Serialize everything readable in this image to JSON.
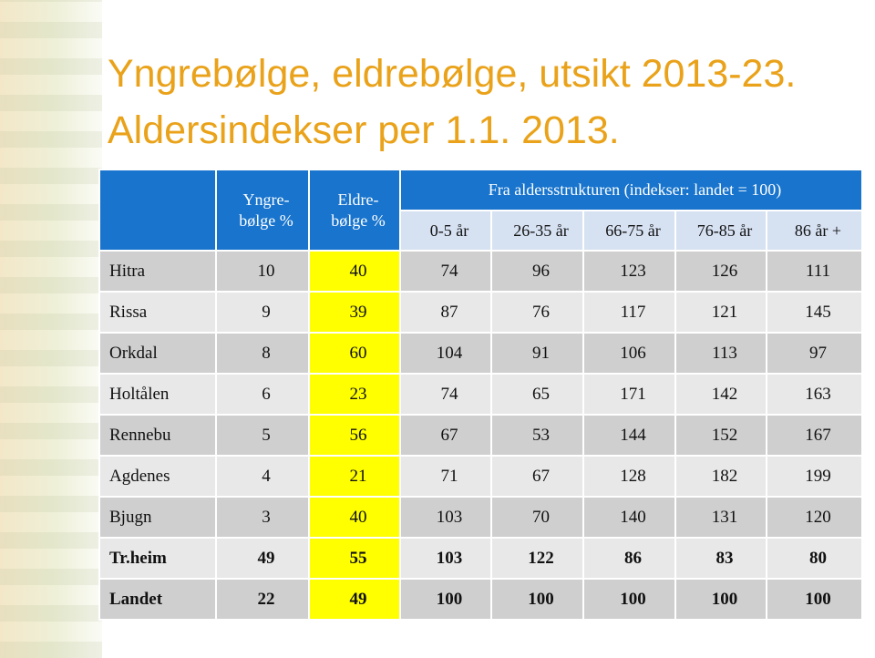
{
  "title": [
    "Yngrebølge, eldrebølge, utsikt 2013-23.",
    "Aldersindekser per 1.1. 2013."
  ],
  "table": {
    "header": {
      "col1": "Yngre-\nbølge %",
      "col2": "Eldre-\nbølge %",
      "group": "Fra aldersstrukturen (indekser: landet = 100)",
      "sub": [
        "0-5 år",
        "26-35 år",
        "66-75 år",
        "76-85 år",
        "86 år +"
      ]
    },
    "rows": [
      [
        "Hitra",
        "10",
        "40",
        "74",
        "96",
        "123",
        "126",
        "111"
      ],
      [
        "Rissa",
        "9",
        "39",
        "87",
        "76",
        "117",
        "121",
        "145"
      ],
      [
        "Orkdal",
        "8",
        "60",
        "104",
        "91",
        "106",
        "113",
        "97"
      ],
      [
        "Holtålen",
        "6",
        "23",
        "74",
        "65",
        "171",
        "142",
        "163"
      ],
      [
        "Rennebu",
        "5",
        "56",
        "67",
        "53",
        "144",
        "152",
        "167"
      ],
      [
        "Agdenes",
        "4",
        "21",
        "71",
        "67",
        "128",
        "182",
        "199"
      ],
      [
        "Bjugn",
        "3",
        "40",
        "103",
        "70",
        "140",
        "131",
        "120"
      ],
      [
        "Tr.heim",
        "49",
        "55",
        "103",
        "122",
        "86",
        "83",
        "80"
      ],
      [
        "Landet",
        "22",
        "49",
        "100",
        "100",
        "100",
        "100",
        "100"
      ]
    ]
  }
}
